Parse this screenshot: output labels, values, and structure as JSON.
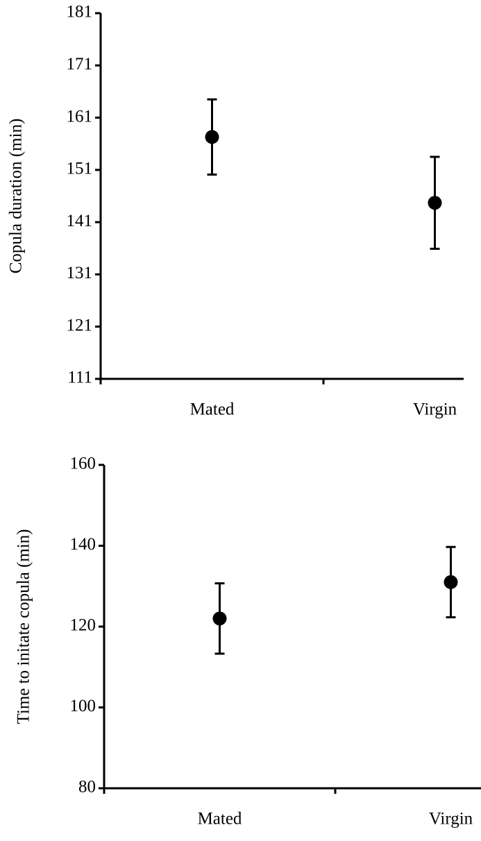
{
  "chart_data": [
    {
      "type": "errorbar",
      "y_label": "Copula duration (min)",
      "categories": [
        "Mated",
        "Virgin"
      ],
      "values": [
        157.3,
        144.7
      ],
      "errors": [
        7.2,
        8.8
      ],
      "color": "#000000",
      "ylim": [
        111,
        181
      ],
      "yticks": [
        111,
        121,
        131,
        141,
        151,
        161,
        171,
        181
      ]
    },
    {
      "type": "errorbar",
      "y_label": "Time to initate copula (min)",
      "categories": [
        "Mated",
        "Virgin"
      ],
      "values": [
        122,
        131
      ],
      "errors": [
        8.7,
        8.7
      ],
      "color": "#000000",
      "ylim": [
        80,
        160
      ],
      "yticks": [
        80,
        100,
        120,
        140,
        160
      ]
    }
  ]
}
